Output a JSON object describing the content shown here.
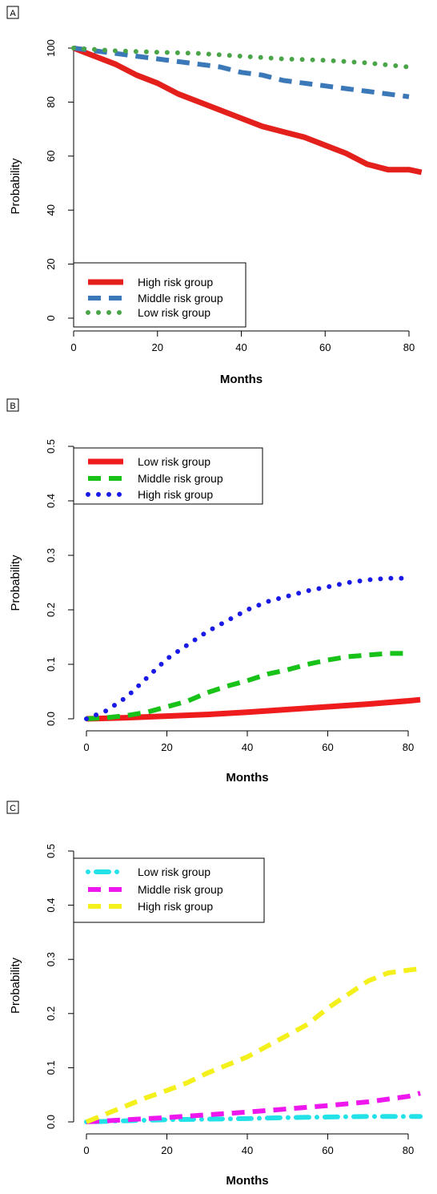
{
  "panels": [
    {
      "tag": "A",
      "chart_data": {
        "type": "line",
        "xlabel": "Months",
        "ylabel": "Probability",
        "xlim": [
          0,
          84
        ],
        "ylim": [
          0,
          100
        ],
        "xticks": [
          0,
          20,
          40,
          60,
          80
        ],
        "yticks": [
          0,
          20,
          40,
          60,
          80,
          100
        ],
        "legend_position": "bottom-left",
        "series": [
          {
            "name": "High risk group",
            "color": "#e3201c",
            "style": "solid",
            "x": [
              0,
              5,
              10,
              15,
              20,
              25,
              30,
              35,
              40,
              45,
              50,
              55,
              60,
              65,
              70,
              75,
              80,
              83
            ],
            "y": [
              100,
              97,
              94,
              90,
              87,
              83,
              80,
              77,
              74,
              71,
              69,
              67,
              64,
              61,
              57,
              55,
              55,
              54
            ]
          },
          {
            "name": "Middle risk group",
            "color": "#3b78b8",
            "style": "dashed",
            "x": [
              0,
              5,
              10,
              15,
              20,
              25,
              30,
              35,
              40,
              45,
              50,
              55,
              60,
              65,
              70,
              75,
              80
            ],
            "y": [
              100,
              99,
              98,
              97,
              96,
              95,
              94,
              93,
              91,
              90,
              88,
              87,
              86,
              85,
              84,
              83,
              82
            ]
          },
          {
            "name": "Low risk group",
            "color": "#4aa548",
            "style": "dotted",
            "x": [
              0,
              10,
              20,
              30,
              40,
              50,
              60,
              70,
              80
            ],
            "y": [
              100,
              99,
              98.5,
              98,
              97,
              96,
              95.5,
              94.5,
              93
            ]
          }
        ]
      }
    },
    {
      "tag": "B",
      "chart_data": {
        "type": "line",
        "xlabel": "Months",
        "ylabel": "Probability",
        "xlim": [
          0,
          84
        ],
        "ylim": [
          0,
          0.5
        ],
        "xticks": [
          0,
          20,
          40,
          60,
          80
        ],
        "yticks": [
          "0.0",
          "0.1",
          "0.2",
          "0.3",
          "0.4",
          "0.5"
        ],
        "legend_position": "top-left",
        "series": [
          {
            "name": "Low risk group",
            "color": "#ee1c1c",
            "style": "solid",
            "x": [
              0,
              10,
              20,
              30,
              40,
              50,
              60,
              70,
              80,
              83
            ],
            "y": [
              0,
              0.002,
              0.005,
              0.008,
              0.012,
              0.017,
              0.022,
              0.027,
              0.033,
              0.035
            ]
          },
          {
            "name": "Middle risk group",
            "color": "#19c219",
            "style": "dashed",
            "x": [
              0,
              5,
              10,
              15,
              20,
              25,
              30,
              35,
              40,
              45,
              50,
              55,
              60,
              65,
              70,
              75,
              80
            ],
            "y": [
              0,
              0.002,
              0.006,
              0.012,
              0.022,
              0.032,
              0.048,
              0.06,
              0.07,
              0.082,
              0.09,
              0.1,
              0.108,
              0.114,
              0.117,
              0.12,
              0.12
            ]
          },
          {
            "name": "High risk group",
            "color": "#1a1ae6",
            "style": "dotted",
            "x": [
              0,
              5,
              10,
              15,
              20,
              25,
              30,
              35,
              40,
              45,
              50,
              55,
              60,
              65,
              70,
              75,
              80
            ],
            "y": [
              0,
              0.015,
              0.04,
              0.075,
              0.11,
              0.135,
              0.16,
              0.18,
              0.2,
              0.215,
              0.225,
              0.235,
              0.242,
              0.25,
              0.255,
              0.258,
              0.258
            ]
          }
        ]
      }
    },
    {
      "tag": "C",
      "chart_data": {
        "type": "line",
        "xlabel": "Months",
        "ylabel": "Probability",
        "xlim": [
          0,
          84
        ],
        "ylim": [
          0,
          0.5
        ],
        "xticks": [
          0,
          20,
          40,
          60,
          80
        ],
        "yticks": [
          "0.0",
          "0.1",
          "0.2",
          "0.3",
          "0.4",
          "0.5"
        ],
        "legend_position": "top-left",
        "series": [
          {
            "name": "Low risk group",
            "color": "#22e2e8",
            "style": "dotdash",
            "x": [
              0,
              10,
              20,
              30,
              40,
              50,
              60,
              70,
              80,
              83
            ],
            "y": [
              0,
              0.002,
              0.004,
              0.005,
              0.006,
              0.008,
              0.009,
              0.01,
              0.01,
              0.01
            ]
          },
          {
            "name": "Middle risk group",
            "color": "#ee18ee",
            "style": "dashed",
            "x": [
              0,
              10,
              20,
              30,
              40,
              50,
              60,
              70,
              80,
              83
            ],
            "y": [
              0,
              0.004,
              0.008,
              0.013,
              0.018,
              0.024,
              0.03,
              0.037,
              0.047,
              0.053
            ]
          },
          {
            "name": "High risk group",
            "color": "#f4f01c",
            "style": "dashed",
            "x": [
              0,
              5,
              10,
              15,
              20,
              25,
              30,
              35,
              40,
              45,
              50,
              55,
              60,
              65,
              70,
              75,
              80,
              83
            ],
            "y": [
              0,
              0.015,
              0.03,
              0.045,
              0.058,
              0.072,
              0.09,
              0.105,
              0.12,
              0.14,
              0.16,
              0.18,
              0.21,
              0.235,
              0.26,
              0.275,
              0.28,
              0.283
            ]
          }
        ]
      }
    }
  ]
}
